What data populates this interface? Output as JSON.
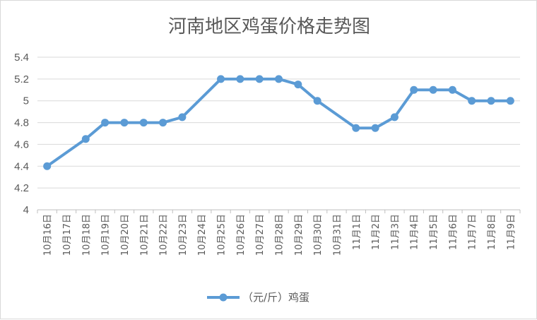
{
  "chart_data": {
    "type": "line",
    "title": "河南地区鸡蛋价格走势图",
    "categories": [
      "10月16日",
      "10月17日",
      "10月18日",
      "10月19日",
      "10月20日",
      "10月21日",
      "10月22日",
      "10月23日",
      "10月24日",
      "10月25日",
      "10月26日",
      "10月27日",
      "10月28日",
      "10月29日",
      "10月30日",
      "10月31日",
      "11月1日",
      "11月2日",
      "11月3日",
      "11月4日",
      "11月5日",
      "11月6日",
      "11月7日",
      "11月8日",
      "11月9日"
    ],
    "series": [
      {
        "name": "（元/斤）鸡蛋",
        "color": "#5b9bd5",
        "values": [
          4.4,
          null,
          4.65,
          4.8,
          4.8,
          4.8,
          4.8,
          4.85,
          null,
          5.2,
          5.2,
          5.2,
          5.2,
          5.15,
          5.0,
          null,
          4.75,
          4.75,
          4.85,
          5.1,
          5.1,
          5.1,
          5.0,
          5.0,
          5.0
        ]
      }
    ],
    "ylim": [
      4,
      5.4
    ],
    "yticks": [
      "4",
      "4.2",
      "4.4",
      "4.6",
      "4.8",
      "5",
      "5.2",
      "5.4"
    ],
    "grid": true,
    "legend": "bottom"
  }
}
